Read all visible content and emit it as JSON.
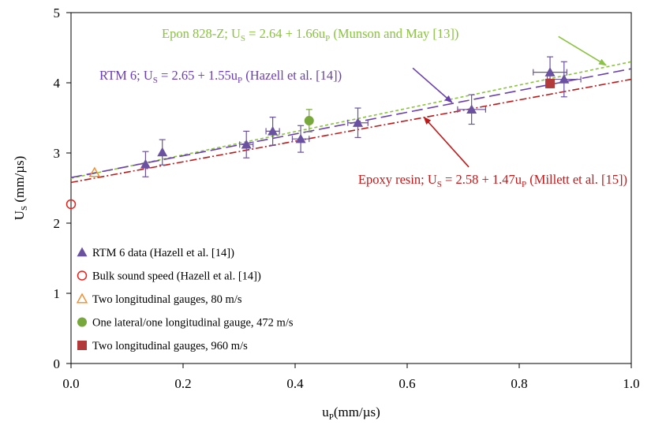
{
  "chart_data": {
    "type": "scatter",
    "xlabel": "u",
    "xlabel_sub": "P",
    "xlabel_unit": "(mm/µs)",
    "ylabel": "U",
    "ylabel_sub": "S",
    "ylabel_unit": " (mm/µs)",
    "xlim": [
      0,
      1.0
    ],
    "ylim": [
      0,
      5
    ],
    "xticks": [
      0.0,
      0.2,
      0.4,
      0.6,
      0.8,
      1.0
    ],
    "xtick_labels": [
      "0.0",
      "0.2",
      "0.4",
      "0.6",
      "0.8",
      "1.0"
    ],
    "yticks": [
      0,
      1,
      2,
      3,
      4,
      5
    ],
    "ytick_labels": [
      "0",
      "1",
      "2",
      "3",
      "4",
      "5"
    ],
    "grid": false,
    "legend_position": "bottom-left",
    "series": [
      {
        "name": "RTM 6 data (Hazell et al. [14])",
        "marker": "triangle",
        "color": "#6a52a0",
        "points": [
          {
            "x": 0.133,
            "y": 2.84,
            "yerr": 0.18,
            "xerr": 0.0
          },
          {
            "x": 0.163,
            "y": 3.01,
            "yerr": 0.18,
            "xerr": 0.0
          },
          {
            "x": 0.313,
            "y": 3.12,
            "yerr": 0.19,
            "xerr": 0.012
          },
          {
            "x": 0.36,
            "y": 3.31,
            "yerr": 0.2,
            "xerr": 0.012
          },
          {
            "x": 0.41,
            "y": 3.2,
            "yerr": 0.19,
            "xerr": 0.015
          },
          {
            "x": 0.512,
            "y": 3.43,
            "yerr": 0.21,
            "xerr": 0.018
          },
          {
            "x": 0.715,
            "y": 3.62,
            "yerr": 0.21,
            "xerr": 0.025
          },
          {
            "x": 0.855,
            "y": 4.15,
            "yerr": 0.22,
            "xerr": 0.03
          },
          {
            "x": 0.88,
            "y": 4.05,
            "yerr": 0.25,
            "xerr": 0.03
          }
        ]
      },
      {
        "name": "Bulk sound speed (Hazell et al. [14])",
        "marker": "circle-open",
        "color": "#e8201a",
        "points": [
          {
            "x": 0.0,
            "y": 2.27
          }
        ]
      },
      {
        "name": "Two longitudinal gauges, 80 m/s",
        "marker": "triangle-open",
        "color": "#f28c28",
        "points": [
          {
            "x": 0.042,
            "y": 2.72
          }
        ]
      },
      {
        "name": "One lateral/one longitudinal gauge, 472 m/s",
        "marker": "circle",
        "color": "#77a83c",
        "points": [
          {
            "x": 0.425,
            "y": 3.46,
            "yerr": 0.16
          }
        ]
      },
      {
        "name": "Two longitudinal gauges, 960 m/s",
        "marker": "square",
        "color": "#b23a3a",
        "points": [
          {
            "x": 0.855,
            "y": 3.99
          }
        ]
      }
    ],
    "fits": [
      {
        "name": "Epon 828-Z",
        "intercept": 2.64,
        "slope": 1.66,
        "color": "#8ac340",
        "dash": "4 3"
      },
      {
        "name": "RTM 6",
        "intercept": 2.65,
        "slope": 1.55,
        "color": "#6a3fb0",
        "dash": "14 6"
      },
      {
        "name": "Epoxy resin",
        "intercept": 2.58,
        "slope": 1.47,
        "color": "#c0191a",
        "dash": "9 3 2 3"
      }
    ],
    "annotations": [
      {
        "color": "#8ac340",
        "prefix": "Epon 828-Z; U",
        "sub1": "S",
        "middle": " = 2.64 + 1.66u",
        "sub2": "P",
        "suffix": " (Munson and May [13])",
        "arrow_from": [
          0.87,
          4.66
        ],
        "arrow_to": [
          0.955,
          4.25
        ]
      },
      {
        "color": "#6a3fb0",
        "prefix": "RTM 6; U",
        "sub1": "S",
        "middle": " = 2.65 + 1.55u",
        "sub2": "P",
        "suffix": " (Hazell et al. [14])",
        "arrow_from": [
          0.61,
          4.21
        ],
        "arrow_to": [
          0.68,
          3.72
        ]
      },
      {
        "color": "#c0191a",
        "prefix": "Epoxy resin; U",
        "sub1": "S",
        "middle": " = 2.58 + 1.47u",
        "sub2": "P",
        "suffix": " (Millett et al. [15])",
        "arrow_from": [
          0.71,
          2.8
        ],
        "arrow_to": [
          0.63,
          3.51
        ]
      }
    ]
  }
}
